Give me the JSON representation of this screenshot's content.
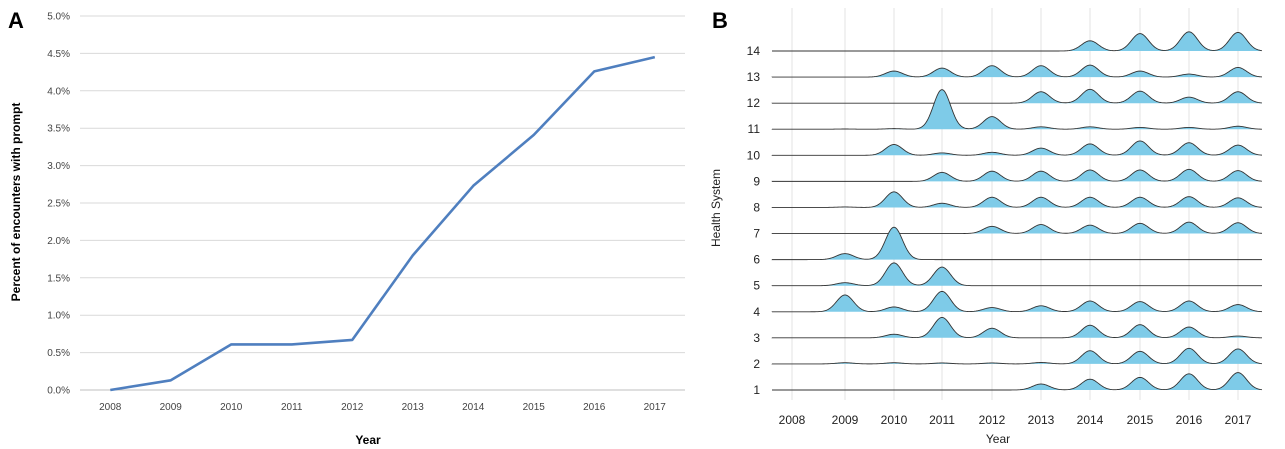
{
  "chart_data": [
    {
      "panel": "A",
      "type": "line",
      "title": "",
      "xlabel": "Year",
      "ylabel": "Percent of encounters with prompt",
      "x": [
        "2008",
        "2009",
        "2010",
        "2011",
        "2012",
        "2013",
        "2014",
        "2015",
        "2016",
        "2017"
      ],
      "series": [
        {
          "values": [
            0.0,
            0.13,
            0.61,
            0.61,
            0.67,
            1.8,
            2.73,
            3.41,
            4.26,
            4.45
          ]
        }
      ],
      "yticks": [
        "0.0%",
        "0.5%",
        "1.0%",
        "1.5%",
        "2.0%",
        "2.5%",
        "3.0%",
        "3.5%",
        "4.0%",
        "4.5%",
        "5.0%"
      ],
      "ylim": [
        0,
        5.0
      ],
      "grid": true,
      "color": "#4f7fbf"
    },
    {
      "panel": "B",
      "type": "area",
      "subtype": "ridgeline",
      "title": "",
      "xlabel": "Year",
      "ylabel": "Health System",
      "x": [
        "2008",
        "2009",
        "2010",
        "2011",
        "2012",
        "2013",
        "2014",
        "2015",
        "2016",
        "2017"
      ],
      "systems": [
        "1",
        "2",
        "3",
        "4",
        "5",
        "6",
        "7",
        "8",
        "9",
        "10",
        "11",
        "12",
        "13",
        "14"
      ],
      "density": {
        "1": [
          0,
          0,
          0,
          0,
          0,
          0.5,
          0.9,
          1.05,
          1.35,
          1.45
        ],
        "2": [
          0,
          0.1,
          0.1,
          0.08,
          0.08,
          0.12,
          1.1,
          1.05,
          1.3,
          1.25
        ],
        "3": [
          0,
          0,
          0.3,
          1.7,
          0.8,
          0,
          1.05,
          1.1,
          0.9,
          0.15
        ],
        "4": [
          0,
          1.4,
          0.4,
          1.7,
          0.35,
          0.5,
          0.9,
          0.85,
          0.9,
          0.6
        ],
        "5": [
          0,
          0.25,
          1.9,
          1.55,
          0,
          0,
          0,
          0,
          0,
          0
        ],
        "6": [
          0,
          0.5,
          2.7,
          0,
          0,
          0,
          0,
          0,
          0,
          0
        ],
        "7": [
          0,
          0,
          0,
          0,
          0.6,
          0.75,
          0.7,
          0.85,
          0.95,
          0.9
        ],
        "8": [
          0,
          0.04,
          1.3,
          0.35,
          0.85,
          0.85,
          0.85,
          0.85,
          0.9,
          0.8
        ],
        "9": [
          0,
          0,
          0,
          0.75,
          0.85,
          0.85,
          0.95,
          0.95,
          1.0,
          0.9
        ],
        "10": [
          0,
          0,
          0.9,
          0.2,
          0.25,
          0.6,
          0.95,
          1.2,
          1.05,
          0.85
        ],
        "11": [
          0,
          0.02,
          0.05,
          3.3,
          1.05,
          0.2,
          0.2,
          0.15,
          0.15,
          0.25
        ],
        "12": [
          0,
          0,
          0,
          0,
          0,
          0.95,
          1.15,
          1.0,
          0.5,
          0.95
        ],
        "13": [
          0,
          0,
          0.5,
          0.75,
          0.95,
          0.95,
          1.0,
          0.5,
          0.25,
          0.8
        ],
        "14": [
          0,
          0,
          0,
          0,
          0,
          0,
          0.85,
          1.45,
          1.6,
          1.55
        ]
      },
      "color": "#7ecbe8"
    }
  ]
}
